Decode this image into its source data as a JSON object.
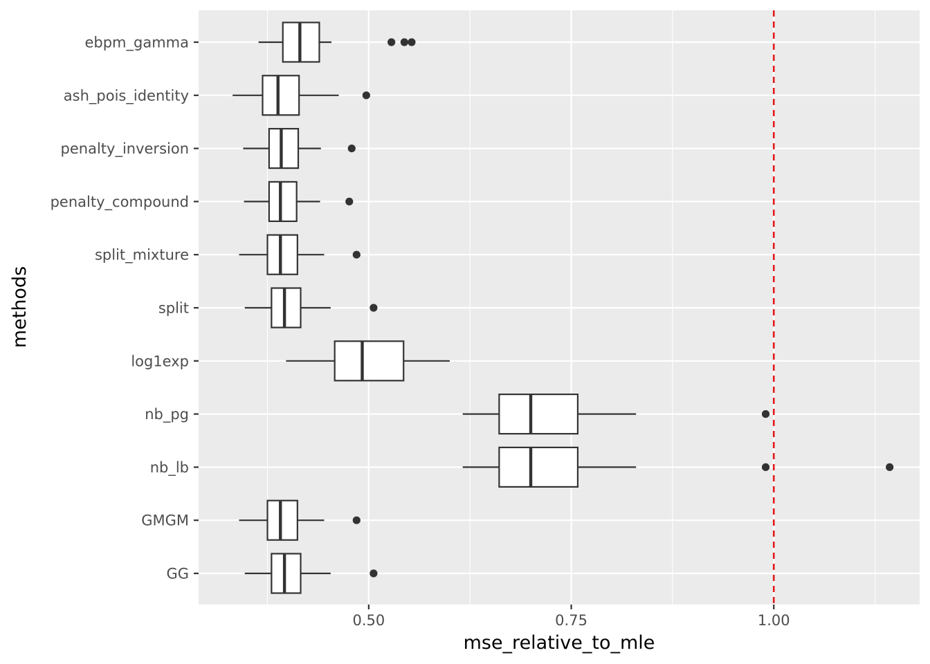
{
  "chart_data": {
    "type": "boxplot",
    "orientation": "horizontal",
    "xlabel": "mse_relative_to_mle",
    "ylabel": "methods",
    "xlim": [
      0.29,
      1.18
    ],
    "x_ticks": [
      0.5,
      0.75,
      1.0
    ],
    "x_tick_labels": [
      "0.50",
      "0.75",
      "1.00"
    ],
    "x_minor_ticks": [
      0.375,
      0.625,
      0.875,
      1.125
    ],
    "reference_line": {
      "x": 1.0,
      "color": "#e41a1c",
      "style": "dashed"
    },
    "grid": true,
    "colors": {
      "panel": "#ebebeb",
      "grid": "#ffffff",
      "box_fill": "#ffffff",
      "stroke": "#333333"
    },
    "categories": [
      "ebpm_gamma",
      "ash_pois_identity",
      "penalty_inversion",
      "penalty_compound",
      "split_mixture",
      "split",
      "log1exp",
      "nb_pg",
      "nb_lb",
      "GMGM",
      "GG"
    ],
    "boxes": [
      {
        "label": "ebpm_gamma",
        "whisker_low": 0.364,
        "q1": 0.394,
        "median": 0.415,
        "q3": 0.439,
        "whisker_high": 0.454,
        "outliers": [
          0.528,
          0.544,
          0.553
        ]
      },
      {
        "label": "ash_pois_identity",
        "whisker_low": 0.332,
        "q1": 0.369,
        "median": 0.388,
        "q3": 0.414,
        "whisker_high": 0.463,
        "outliers": [
          0.497
        ]
      },
      {
        "label": "penalty_inversion",
        "whisker_low": 0.345,
        "q1": 0.377,
        "median": 0.392,
        "q3": 0.413,
        "whisker_high": 0.441,
        "outliers": [
          0.479
        ]
      },
      {
        "label": "penalty_compound",
        "whisker_low": 0.346,
        "q1": 0.377,
        "median": 0.391,
        "q3": 0.411,
        "whisker_high": 0.44,
        "outliers": [
          0.476
        ]
      },
      {
        "label": "split_mixture",
        "whisker_low": 0.34,
        "q1": 0.375,
        "median": 0.391,
        "q3": 0.412,
        "whisker_high": 0.445,
        "outliers": [
          0.485
        ]
      },
      {
        "label": "split",
        "whisker_low": 0.347,
        "q1": 0.38,
        "median": 0.396,
        "q3": 0.416,
        "whisker_high": 0.453,
        "outliers": [
          0.506
        ]
      },
      {
        "label": "log1exp",
        "whisker_low": 0.398,
        "q1": 0.458,
        "median": 0.492,
        "q3": 0.543,
        "whisker_high": 0.6,
        "outliers": []
      },
      {
        "label": "nb_pg",
        "whisker_low": 0.616,
        "q1": 0.661,
        "median": 0.7,
        "q3": 0.758,
        "whisker_high": 0.83,
        "outliers": [
          0.99
        ]
      },
      {
        "label": "nb_lb",
        "whisker_low": 0.616,
        "q1": 0.661,
        "median": 0.7,
        "q3": 0.758,
        "whisker_high": 0.83,
        "outliers": [
          0.99,
          1.143
        ]
      },
      {
        "label": "GMGM",
        "whisker_low": 0.34,
        "q1": 0.375,
        "median": 0.391,
        "q3": 0.412,
        "whisker_high": 0.445,
        "outliers": [
          0.485
        ]
      },
      {
        "label": "GG",
        "whisker_low": 0.347,
        "q1": 0.38,
        "median": 0.396,
        "q3": 0.416,
        "whisker_high": 0.453,
        "outliers": [
          0.506
        ]
      }
    ]
  }
}
